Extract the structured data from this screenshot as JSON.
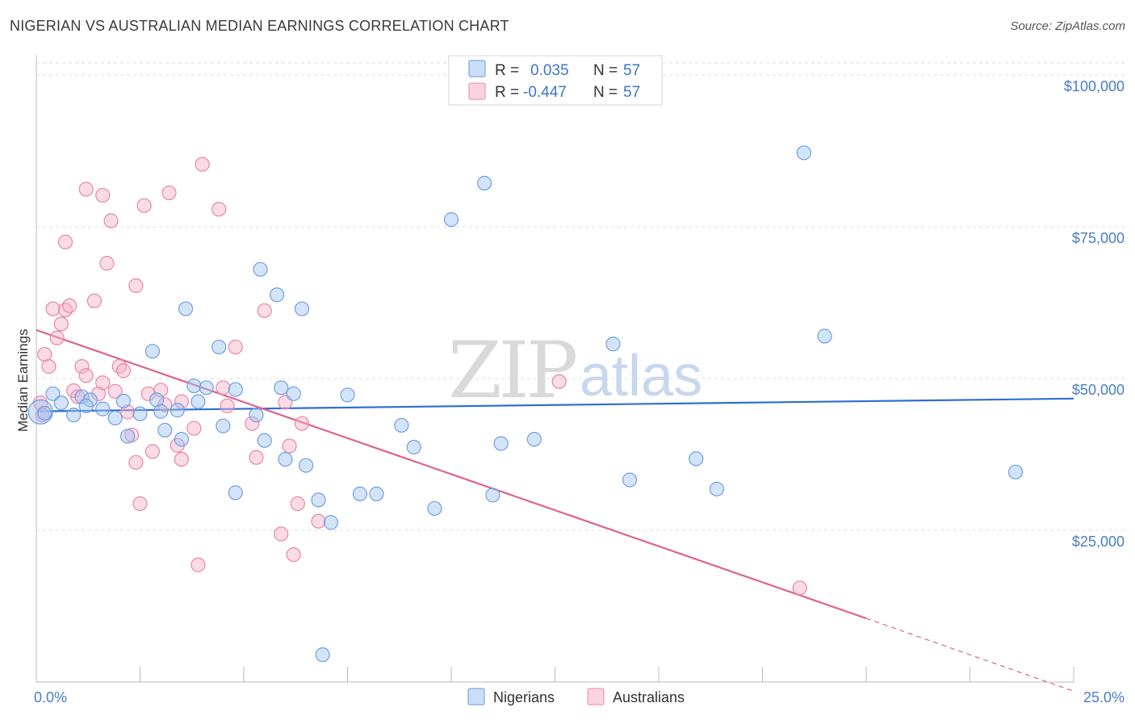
{
  "title": "NIGERIAN VS AUSTRALIAN MEDIAN EARNINGS CORRELATION CHART",
  "source": "Source: ZipAtlas.com",
  "watermark": {
    "part1": "ZIP",
    "part2": "atlas"
  },
  "colors": {
    "nigerians": "#6f9fe0",
    "nigerians_fill": "rgba(160,195,240,0.45)",
    "australians": "#e886a8",
    "australians_fill": "rgba(245,175,200,0.45)",
    "blue_line": "#2f6fcf",
    "pink_line": "#e0608f",
    "tick_text": "#4a7cc7",
    "grid": "#dcdcdc"
  },
  "legend_box": {
    "rows": [
      {
        "r_label": "R =",
        "r_value": "0.035",
        "n_label": "N =",
        "n_value": "57"
      },
      {
        "r_label": "R =",
        "r_value": "-0.447",
        "n_label": "N =",
        "n_value": "57"
      }
    ]
  },
  "chart_data": {
    "type": "scatter",
    "title": "NIGERIAN VS AUSTRALIAN MEDIAN EARNINGS CORRELATION CHART",
    "xlabel": "",
    "ylabel": "Median Earnings",
    "xlim": [
      0,
      25
    ],
    "ylim": [
      0,
      102000
    ],
    "x_tick_labels": [
      "0.0%",
      "25.0%"
    ],
    "y_ticks": [
      25000,
      50000,
      75000,
      100000
    ],
    "y_tick_labels": [
      "$25,000",
      "$50,000",
      "$75,000",
      "$100,000"
    ],
    "grid": "horizontal dashed",
    "legend": "bottom-center",
    "series": [
      {
        "name": "Nigerians",
        "r": 0.035,
        "n": 57,
        "trend": {
          "x": [
            0,
            25
          ],
          "y": [
            44600,
            46700
          ]
        },
        "points": [
          [
            0.1,
            44500
          ],
          [
            0.4,
            47500
          ],
          [
            0.6,
            46000
          ],
          [
            0.9,
            44000
          ],
          [
            1.1,
            47000
          ],
          [
            1.3,
            46500
          ],
          [
            1.6,
            45000
          ],
          [
            1.9,
            43500
          ],
          [
            2.1,
            46300
          ],
          [
            2.2,
            40500
          ],
          [
            2.5,
            44200
          ],
          [
            2.8,
            54500
          ],
          [
            2.9,
            46500
          ],
          [
            3.0,
            44600
          ],
          [
            3.1,
            41500
          ],
          [
            3.4,
            44800
          ],
          [
            3.5,
            40000
          ],
          [
            3.6,
            61500
          ],
          [
            3.8,
            48800
          ],
          [
            4.1,
            48500
          ],
          [
            4.4,
            55200
          ],
          [
            4.5,
            42200
          ],
          [
            4.8,
            48200
          ],
          [
            4.8,
            31200
          ],
          [
            5.3,
            44000
          ],
          [
            5.4,
            68000
          ],
          [
            5.5,
            39800
          ],
          [
            5.8,
            63800
          ],
          [
            5.9,
            48500
          ],
          [
            6.0,
            36700
          ],
          [
            6.4,
            61500
          ],
          [
            6.5,
            35700
          ],
          [
            6.8,
            30000
          ],
          [
            6.9,
            4500
          ],
          [
            7.1,
            26300
          ],
          [
            7.5,
            47300
          ],
          [
            7.8,
            31000
          ],
          [
            8.2,
            31000
          ],
          [
            8.8,
            42300
          ],
          [
            9.1,
            38700
          ],
          [
            9.6,
            28600
          ],
          [
            10.0,
            76200
          ],
          [
            10.8,
            82200
          ],
          [
            11.0,
            30800
          ],
          [
            11.2,
            39300
          ],
          [
            12.0,
            40000
          ],
          [
            13.9,
            55700
          ],
          [
            14.3,
            33300
          ],
          [
            15.9,
            36800
          ],
          [
            16.4,
            31800
          ],
          [
            18.5,
            87200
          ],
          [
            19.0,
            57000
          ],
          [
            23.6,
            34600
          ],
          [
            0.2,
            44300
          ],
          [
            1.2,
            45500
          ],
          [
            3.9,
            46200
          ],
          [
            6.2,
            47500
          ]
        ]
      },
      {
        "name": "Australians",
        "r": -0.447,
        "n": 57,
        "trend": {
          "x": [
            0,
            20
          ],
          "y": [
            58000,
            10500
          ]
        },
        "trend_dashed": {
          "x": [
            20,
            25
          ],
          "y": [
            10500,
            -1500
          ]
        },
        "points": [
          [
            0.1,
            46000
          ],
          [
            0.2,
            54000
          ],
          [
            0.3,
            52000
          ],
          [
            0.4,
            61500
          ],
          [
            0.5,
            56700
          ],
          [
            0.6,
            59000
          ],
          [
            0.7,
            61300
          ],
          [
            0.7,
            72500
          ],
          [
            0.8,
            62000
          ],
          [
            0.9,
            48000
          ],
          [
            1.0,
            47000
          ],
          [
            1.1,
            52000
          ],
          [
            1.2,
            50500
          ],
          [
            1.2,
            81200
          ],
          [
            1.4,
            62800
          ],
          [
            1.5,
            47500
          ],
          [
            1.6,
            49300
          ],
          [
            1.6,
            80200
          ],
          [
            1.7,
            69000
          ],
          [
            1.8,
            76000
          ],
          [
            1.9,
            47900
          ],
          [
            2.0,
            52000
          ],
          [
            2.1,
            51300
          ],
          [
            2.2,
            44500
          ],
          [
            2.3,
            40700
          ],
          [
            2.4,
            36200
          ],
          [
            2.4,
            65300
          ],
          [
            2.5,
            29400
          ],
          [
            2.6,
            78500
          ],
          [
            2.7,
            47500
          ],
          [
            2.8,
            38000
          ],
          [
            3.0,
            48100
          ],
          [
            3.1,
            45700
          ],
          [
            3.2,
            80600
          ],
          [
            3.4,
            39000
          ],
          [
            3.5,
            36700
          ],
          [
            3.5,
            46200
          ],
          [
            3.8,
            41800
          ],
          [
            3.9,
            19300
          ],
          [
            4.0,
            85300
          ],
          [
            4.4,
            77900
          ],
          [
            4.5,
            48500
          ],
          [
            4.6,
            45500
          ],
          [
            4.8,
            55200
          ],
          [
            5.2,
            42600
          ],
          [
            5.3,
            37000
          ],
          [
            5.5,
            61200
          ],
          [
            5.9,
            24400
          ],
          [
            6.0,
            46100
          ],
          [
            6.1,
            38900
          ],
          [
            6.2,
            21000
          ],
          [
            6.3,
            29400
          ],
          [
            6.4,
            42600
          ],
          [
            6.8,
            26500
          ],
          [
            12.6,
            49500
          ],
          [
            18.4,
            15500
          ],
          [
            0.15,
            44000
          ]
        ]
      }
    ]
  }
}
